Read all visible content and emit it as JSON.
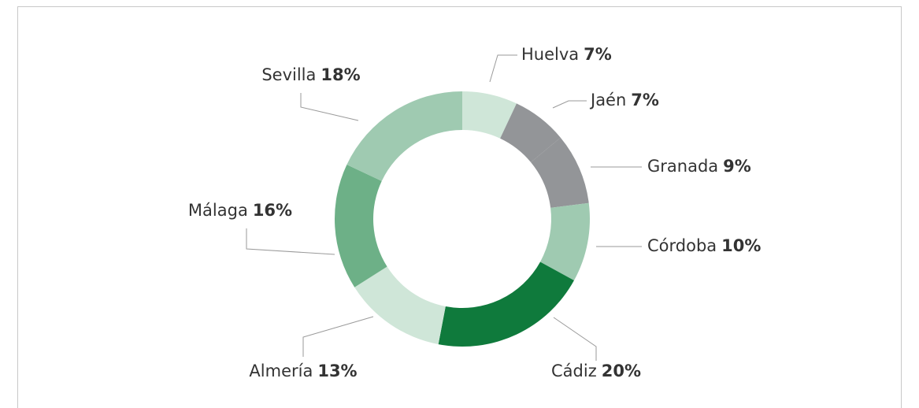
{
  "chart_data": {
    "type": "donut",
    "categories": [
      "Huelva",
      "Jaén",
      "Granada",
      "Córdoba",
      "Cádiz",
      "Almería",
      "Málaga",
      "Sevilla"
    ],
    "values": [
      7,
      7,
      9,
      10,
      20,
      13,
      16,
      18
    ],
    "value_labels": [
      "7%",
      "7%",
      "9%",
      "10%",
      "20%",
      "13%",
      "16%",
      "18%"
    ],
    "colors": [
      "#cfe6d8",
      "#939598",
      "#939598",
      "#9fcab1",
      "#0f7a3c",
      "#cfe6d8",
      "#6db087",
      "#9fcab1"
    ]
  }
}
